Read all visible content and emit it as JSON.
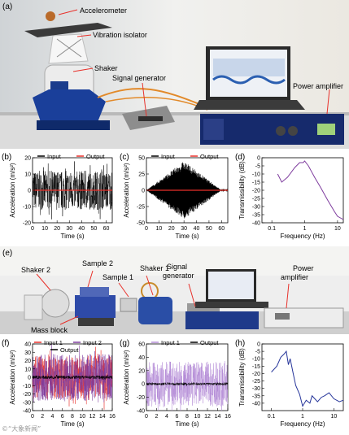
{
  "panels": {
    "a": {
      "label": "(a)",
      "callouts": {
        "accelerometer": "Accelerometer",
        "vibration_isolator": "Vibration isolator",
        "shaker": "Shaker",
        "signal_generator": "Signal generator",
        "power_amplifier": "Power amplifier"
      }
    },
    "e": {
      "label": "(e)",
      "callouts": {
        "shaker2": "Shaker 2",
        "sample2": "Sample 2",
        "sample1": "Sample 1",
        "shaker1": "Shaker 1",
        "signal": "Signal",
        "generator": "generator",
        "power": "Power",
        "amplifier": "amplifier",
        "mass_block": "Mass block"
      }
    }
  },
  "colors": {
    "red": "#e8302a",
    "black": "#000000",
    "gray": "#8c8c8c",
    "purple": "#7e3c9e",
    "lavender": "#b38ad6",
    "blue": "#26359a"
  },
  "chart_data": [
    {
      "panel_label": "(b)",
      "type": "line",
      "xlabel": "Time (s)",
      "ylabel": "Acceleration (m/s²)",
      "xlim": [
        0,
        65
      ],
      "ylim": [
        -20,
        20
      ],
      "x_ticks": [
        0,
        10,
        20,
        30,
        40,
        50,
        60
      ],
      "y_ticks": [
        -20,
        -10,
        0,
        10,
        20
      ],
      "series": [
        {
          "name": "Input",
          "color": "#000000",
          "description_value": "broadband noise ±~12 m/s²",
          "amplitude": 12
        },
        {
          "name": "Output",
          "color": "#e8302a",
          "values_constant": 0
        }
      ]
    },
    {
      "panel_label": "(c)",
      "type": "line",
      "xlabel": "Time (s)",
      "ylabel": "Acceleration (m/s²)",
      "xlim": [
        0,
        65
      ],
      "ylim": [
        -50,
        50
      ],
      "x_ticks": [
        0,
        10,
        20,
        30,
        40,
        50,
        60
      ],
      "y_ticks": [
        -50,
        -25,
        0,
        25,
        50
      ],
      "series": [
        {
          "name": "Input",
          "color": "#000000",
          "envelope_x": [
            0,
            30,
            60
          ],
          "envelope_amp": [
            0,
            45,
            0
          ]
        },
        {
          "name": "Output",
          "color": "#e8302a",
          "values_constant": 0
        }
      ]
    },
    {
      "panel_label": "(d)",
      "type": "line",
      "xlabel": "Frequency (Hz)",
      "ylabel": "Transmissibility (dB)",
      "xscale": "log",
      "xlim": [
        0.05,
        15
      ],
      "ylim": [
        -40,
        0
      ],
      "x_ticks": [
        0.1,
        1,
        10
      ],
      "y_ticks": [
        -40,
        -35,
        -30,
        -25,
        -20,
        -15,
        -10,
        -5,
        0
      ],
      "series": [
        {
          "name": "",
          "color": "#7e3c9e",
          "x": [
            0.15,
            0.2,
            0.3,
            0.5,
            0.7,
            0.9,
            1.0,
            1.3,
            2,
            3,
            5,
            8,
            10,
            15
          ],
          "y": [
            -10,
            -15,
            -12,
            -6,
            -3,
            -3,
            -2,
            -5,
            -12,
            -18,
            -26,
            -33,
            -36,
            -38
          ]
        }
      ]
    },
    {
      "panel_label": "(f)",
      "type": "line",
      "xlabel": "Time (s)",
      "ylabel": "Acceleration (m/s²)",
      "xlim": [
        0,
        16
      ],
      "ylim": [
        -40,
        40
      ],
      "x_ticks": [
        0,
        2,
        4,
        6,
        8,
        10,
        12,
        14,
        16
      ],
      "y_ticks": [
        -40,
        -30,
        -20,
        -10,
        0,
        10,
        20,
        30,
        40
      ],
      "series": [
        {
          "name": "Input 1",
          "color": "#e8302a",
          "amplitude": 26
        },
        {
          "name": "Input 2",
          "color": "#7e3c9e",
          "amplitude": 28
        },
        {
          "name": "Output",
          "color": "#000000",
          "amplitude": 2
        }
      ]
    },
    {
      "panel_label": "(g)",
      "type": "line",
      "xlabel": "Time (s)",
      "ylabel": "Acceleration (m/s²)",
      "xlim": [
        0,
        16
      ],
      "ylim": [
        -40,
        60
      ],
      "x_ticks": [
        0,
        2,
        4,
        6,
        8,
        10,
        12,
        14,
        16
      ],
      "y_ticks": [
        -40,
        -20,
        0,
        20,
        40,
        60
      ],
      "series": [
        {
          "name": "Input 1",
          "color": "#b38ad6",
          "amplitude": 34
        },
        {
          "name": "Output",
          "color": "#000000",
          "amplitude": 2
        }
      ]
    },
    {
      "panel_label": "(h)",
      "type": "line",
      "xlabel": "Frequency (Hz)",
      "ylabel": "Transmissibility (dB)",
      "xscale": "log",
      "xlim": [
        0.05,
        20
      ],
      "ylim": [
        -45,
        0
      ],
      "x_ticks": [
        0.1,
        1,
        10
      ],
      "y_ticks": [
        -40,
        -35,
        -30,
        -25,
        -20,
        -15,
        -10,
        -5,
        0
      ],
      "series": [
        {
          "name": "",
          "color": "#26359a",
          "x": [
            0.1,
            0.15,
            0.2,
            0.25,
            0.3,
            0.35,
            0.4,
            0.5,
            0.6,
            0.8,
            1.0,
            1.3,
            1.7,
            2,
            3,
            4,
            5,
            7,
            10,
            15,
            20
          ],
          "y": [
            -19,
            -15,
            -9,
            -7,
            -5,
            -14,
            -10,
            -20,
            -28,
            -34,
            -42,
            -38,
            -40,
            -35,
            -39,
            -36,
            -35,
            -33,
            -37,
            -39,
            -38
          ]
        }
      ]
    }
  ],
  "watermark": "©“大象新闻”"
}
